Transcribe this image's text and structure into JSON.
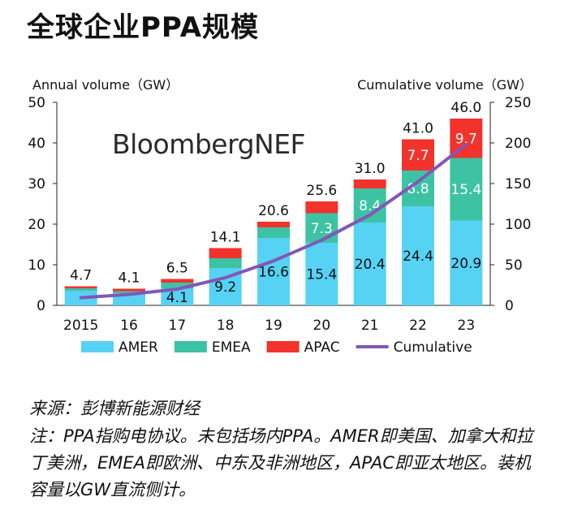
{
  "title": "全球企业PPA规模",
  "brand": "BloombergNEF",
  "source": "来源：彭博新能源财经",
  "note": "注：PPA指购电协议。未包括场内PPA。AMER即美国、加拿大和拉丁美洲，EMEA即欧洲、中东及非洲地区，APAC即亚太地区。装机容量以GW直流侧计。",
  "colors": {
    "AMER": "#56d2f5",
    "EMEA": "#3dc3a4",
    "APAC": "#f1332c",
    "Cumulative": "#8257b8",
    "axis": "#222222",
    "grid": "#dddddd"
  },
  "chart_data": {
    "type": "bar",
    "stacked": true,
    "categories": [
      "2015",
      "16",
      "17",
      "18",
      "19",
      "20",
      "21",
      "22",
      "23"
    ],
    "series": [
      {
        "name": "AMER",
        "values": [
          3.6,
          3.0,
          4.1,
          9.2,
          16.6,
          15.4,
          20.4,
          24.4,
          20.9
        ]
      },
      {
        "name": "EMEA",
        "values": [
          0.6,
          0.5,
          1.5,
          2.4,
          2.6,
          7.3,
          8.4,
          8.8,
          15.4
        ]
      },
      {
        "name": "APAC",
        "values": [
          0.5,
          0.6,
          0.9,
          2.5,
          1.4,
          2.9,
          2.2,
          7.7,
          9.7
        ]
      }
    ],
    "line": {
      "name": "Cumulative",
      "axis": "right",
      "values": [
        9.4,
        13.5,
        20.0,
        34.1,
        54.7,
        80.3,
        111.3,
        152.3,
        198.3
      ]
    },
    "totals": [
      "4.7",
      "4.1",
      "6.5",
      "14.1",
      "20.6",
      "25.6",
      "31.0",
      "41.0",
      "46.0"
    ],
    "bar_labels": [
      {
        "index": 2,
        "series": "AMER",
        "text": "4.1"
      },
      {
        "index": 3,
        "series": "AMER",
        "text": "9.2"
      },
      {
        "index": 4,
        "series": "AMER",
        "text": "16.6"
      },
      {
        "index": 5,
        "series": "AMER",
        "text": "15.4"
      },
      {
        "index": 5,
        "series": "EMEA",
        "text": "7.3"
      },
      {
        "index": 6,
        "series": "AMER",
        "text": "20.4"
      },
      {
        "index": 6,
        "series": "EMEA",
        "text": "8.4"
      },
      {
        "index": 7,
        "series": "AMER",
        "text": "24.4"
      },
      {
        "index": 7,
        "series": "EMEA",
        "text": "8.8"
      },
      {
        "index": 7,
        "series": "APAC",
        "text": "7.7"
      },
      {
        "index": 8,
        "series": "AMER",
        "text": "20.9"
      },
      {
        "index": 8,
        "series": "EMEA",
        "text": "15.4"
      },
      {
        "index": 8,
        "series": "APAC",
        "text": "9.7"
      }
    ],
    "ylabel_left": "Annual volume（GW）",
    "ylabel_right": "Cumulative volume（GW）",
    "ylim_left": [
      0,
      50
    ],
    "yticks_left": [
      "0",
      "10",
      "20",
      "30",
      "40",
      "50"
    ],
    "ylim_right": [
      0,
      250
    ],
    "yticks_right": [
      "0",
      "50",
      "100",
      "150",
      "200",
      "250"
    ],
    "legend": [
      "AMER",
      "EMEA",
      "APAC",
      "Cumulative"
    ],
    "legend_position": "bottom",
    "grid": false
  }
}
